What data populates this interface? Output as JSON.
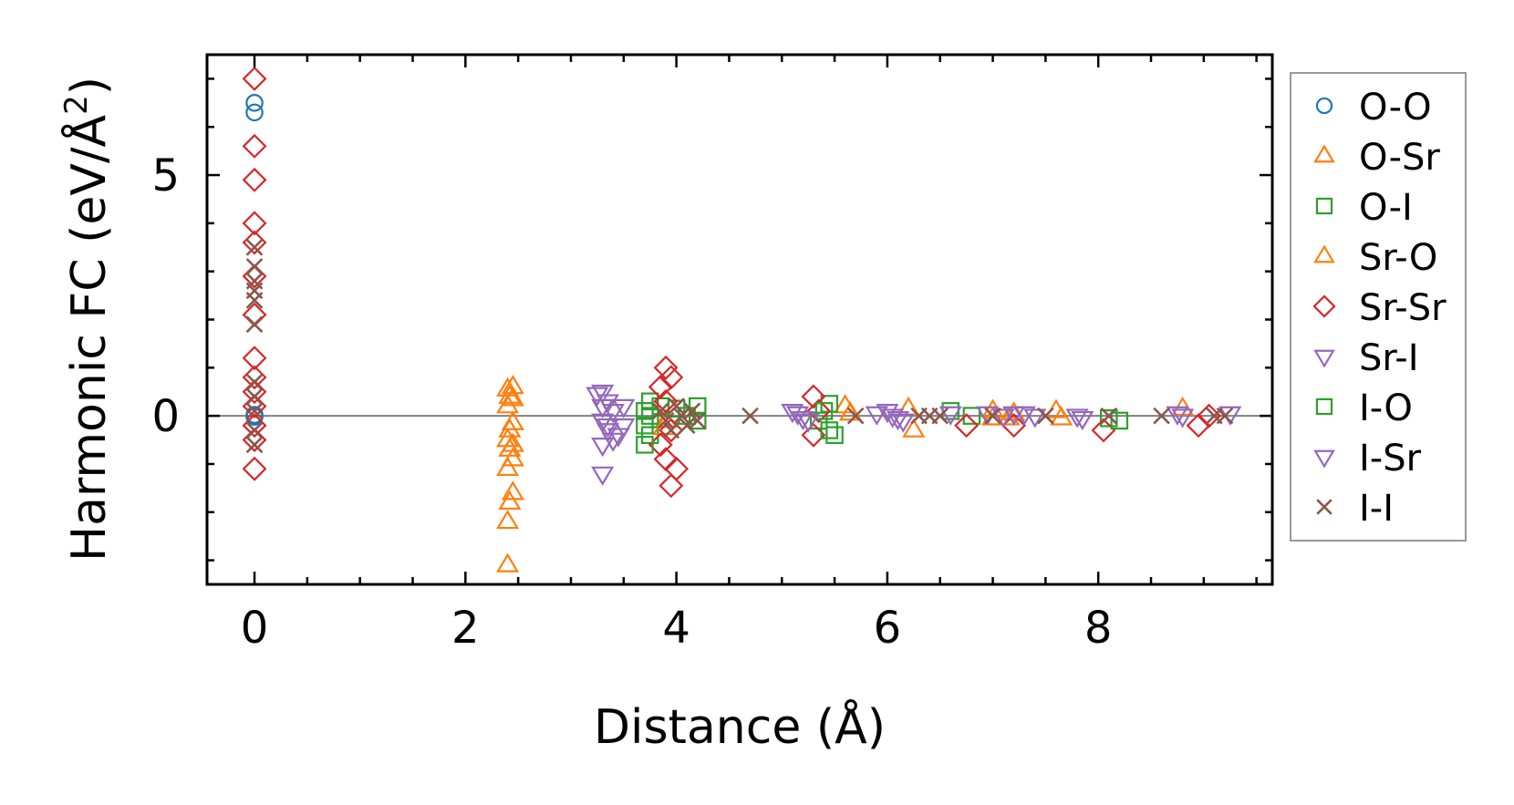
{
  "chart_data": {
    "type": "scatter",
    "title": "",
    "xlabel": "Distance (Å)",
    "ylabel_main": "Harmonic FC (eV/Å",
    "ylabel_sup": "2",
    "ylabel_close": ")",
    "xlim": [
      -0.45,
      9.65
    ],
    "ylim": [
      -3.5,
      7.5
    ],
    "xticks": [
      0,
      2,
      4,
      6,
      8
    ],
    "xtick_labels": [
      "0",
      "2",
      "4",
      "6",
      "8"
    ],
    "yticks": [
      0,
      5
    ],
    "ytick_labels": [
      "0",
      "5"
    ],
    "xminor_step": 0.5,
    "yminor_step": 1,
    "reference_line_y": 0,
    "legend_position": "right, outside plot",
    "series": [
      {
        "name": "O-O",
        "marker": "circle",
        "color": "#1f77b4",
        "points": [
          [
            0,
            6.5
          ],
          [
            0,
            6.3
          ],
          [
            0,
            0.0
          ],
          [
            0,
            0.02
          ],
          [
            0,
            -0.02
          ]
        ]
      },
      {
        "name": "O-Sr",
        "marker": "triangle-up",
        "color": "#ff7f0e",
        "points": [
          [
            2.4,
            0.55
          ],
          [
            2.42,
            0.4
          ],
          [
            2.4,
            0.2
          ],
          [
            2.42,
            -0.3
          ],
          [
            2.4,
            -0.5
          ],
          [
            2.42,
            -0.7
          ],
          [
            2.4,
            -1.1
          ],
          [
            2.42,
            -1.8
          ],
          [
            2.4,
            -2.2
          ],
          [
            2.4,
            -3.1
          ],
          [
            3.9,
            -0.1
          ],
          [
            5.6,
            0.2
          ],
          [
            6.2,
            0.15
          ],
          [
            7.0,
            -0.05
          ],
          [
            7.2,
            0.05
          ],
          [
            7.6,
            0.1
          ],
          [
            8.8,
            0.15
          ]
        ]
      },
      {
        "name": "O-I",
        "marker": "square",
        "color": "#2ca02c",
        "points": [
          [
            3.75,
            0.3
          ],
          [
            3.75,
            0.0
          ],
          [
            3.75,
            -0.4
          ],
          [
            3.85,
            0.2
          ],
          [
            4.0,
            0.15
          ],
          [
            4.2,
            0.2
          ],
          [
            4.2,
            -0.1
          ],
          [
            5.35,
            -0.1
          ],
          [
            5.45,
            0.25
          ],
          [
            5.5,
            -0.4
          ],
          [
            6.6,
            0.1
          ],
          [
            6.8,
            0.0
          ],
          [
            8.1,
            -0.05
          ]
        ]
      },
      {
        "name": "Sr-O",
        "marker": "triangle-up",
        "color": "#ff7f0e",
        "points": [
          [
            2.45,
            0.6
          ],
          [
            2.45,
            0.35
          ],
          [
            2.45,
            -0.15
          ],
          [
            2.45,
            -0.6
          ],
          [
            2.45,
            -0.9
          ],
          [
            2.45,
            -1.6
          ],
          [
            3.88,
            -0.25
          ],
          [
            5.65,
            0.05
          ],
          [
            6.25,
            -0.3
          ],
          [
            7.0,
            0.1
          ],
          [
            7.15,
            -0.05
          ],
          [
            7.65,
            -0.05
          ]
        ]
      },
      {
        "name": "Sr-Sr",
        "marker": "diamond",
        "color": "#d62728",
        "points": [
          [
            0,
            7.0
          ],
          [
            0,
            5.6
          ],
          [
            0,
            4.9
          ],
          [
            0,
            4.0
          ],
          [
            0,
            3.6
          ],
          [
            0,
            2.9
          ],
          [
            0,
            2.1
          ],
          [
            0,
            1.2
          ],
          [
            0,
            0.8
          ],
          [
            0,
            0.5
          ],
          [
            0,
            0.2
          ],
          [
            0,
            -0.2
          ],
          [
            0,
            -0.5
          ],
          [
            0,
            -1.1
          ],
          [
            3.9,
            1.0
          ],
          [
            3.95,
            0.8
          ],
          [
            3.85,
            0.6
          ],
          [
            3.9,
            0.3
          ],
          [
            3.95,
            -0.3
          ],
          [
            3.85,
            -0.6
          ],
          [
            3.9,
            -0.9
          ],
          [
            4.0,
            -1.1
          ],
          [
            3.95,
            -1.45
          ],
          [
            5.3,
            0.4
          ],
          [
            5.35,
            0.1
          ],
          [
            5.3,
            -0.4
          ],
          [
            6.75,
            -0.2
          ],
          [
            7.2,
            -0.2
          ],
          [
            8.05,
            -0.3
          ],
          [
            8.95,
            -0.2
          ],
          [
            9.05,
            0.0
          ]
        ]
      },
      {
        "name": "Sr-I",
        "marker": "triangle-down",
        "color": "#9467bd",
        "points": [
          [
            3.3,
            0.5
          ],
          [
            3.35,
            0.3
          ],
          [
            3.4,
            0.1
          ],
          [
            3.3,
            -0.1
          ],
          [
            3.35,
            -0.3
          ],
          [
            3.4,
            -0.5
          ],
          [
            3.3,
            -1.2
          ],
          [
            3.5,
            0.2
          ],
          [
            3.5,
            -0.2
          ],
          [
            5.1,
            0.1
          ],
          [
            5.2,
            -0.05
          ],
          [
            6.0,
            0.1
          ],
          [
            6.1,
            -0.05
          ],
          [
            6.6,
            0.05
          ],
          [
            7.2,
            0.05
          ],
          [
            7.8,
            0.0
          ],
          [
            8.8,
            0.0
          ]
        ]
      },
      {
        "name": "I-O",
        "marker": "square",
        "color": "#2ca02c",
        "points": [
          [
            3.7,
            0.1
          ],
          [
            3.7,
            -0.2
          ],
          [
            3.7,
            -0.6
          ],
          [
            4.1,
            0.0
          ],
          [
            5.4,
            0.1
          ],
          [
            5.45,
            -0.3
          ],
          [
            8.2,
            -0.1
          ]
        ]
      },
      {
        "name": "I-Sr",
        "marker": "triangle-down",
        "color": "#9467bd",
        "points": [
          [
            3.25,
            0.45
          ],
          [
            3.3,
            0.2
          ],
          [
            3.35,
            -0.2
          ],
          [
            3.45,
            -0.4
          ],
          [
            3.3,
            -0.6
          ],
          [
            5.15,
            0.05
          ],
          [
            5.25,
            -0.1
          ],
          [
            5.9,
            0.05
          ],
          [
            6.05,
            0.0
          ],
          [
            6.15,
            -0.1
          ],
          [
            6.95,
            0.05
          ],
          [
            7.1,
            0.0
          ],
          [
            7.3,
            0.05
          ],
          [
            7.4,
            0.0
          ],
          [
            7.85,
            -0.05
          ],
          [
            8.75,
            0.05
          ],
          [
            9.25,
            0.05
          ]
        ]
      },
      {
        "name": "I-I",
        "marker": "x",
        "color": "#8c564b",
        "points": [
          [
            0,
            3.5
          ],
          [
            0,
            3.1
          ],
          [
            0,
            2.8
          ],
          [
            0,
            2.6
          ],
          [
            0,
            2.4
          ],
          [
            0,
            1.9
          ],
          [
            0,
            0.7
          ],
          [
            0,
            0.4
          ],
          [
            0,
            0.1
          ],
          [
            0,
            -0.3
          ],
          [
            0,
            -0.6
          ],
          [
            3.85,
            0.1
          ],
          [
            3.9,
            -0.1
          ],
          [
            3.95,
            -0.3
          ],
          [
            4.0,
            0.2
          ],
          [
            4.05,
            0.0
          ],
          [
            4.1,
            -0.2
          ],
          [
            4.15,
            0.1
          ],
          [
            4.2,
            -0.1
          ],
          [
            4.7,
            0.0
          ],
          [
            5.7,
            0.0
          ],
          [
            6.3,
            0.0
          ],
          [
            6.4,
            0.0
          ],
          [
            6.5,
            0.0
          ],
          [
            7.0,
            0.0
          ],
          [
            7.5,
            0.0
          ],
          [
            8.1,
            0.0
          ],
          [
            8.6,
            0.0
          ],
          [
            9.1,
            0.0
          ],
          [
            9.2,
            0.0
          ]
        ]
      }
    ]
  }
}
